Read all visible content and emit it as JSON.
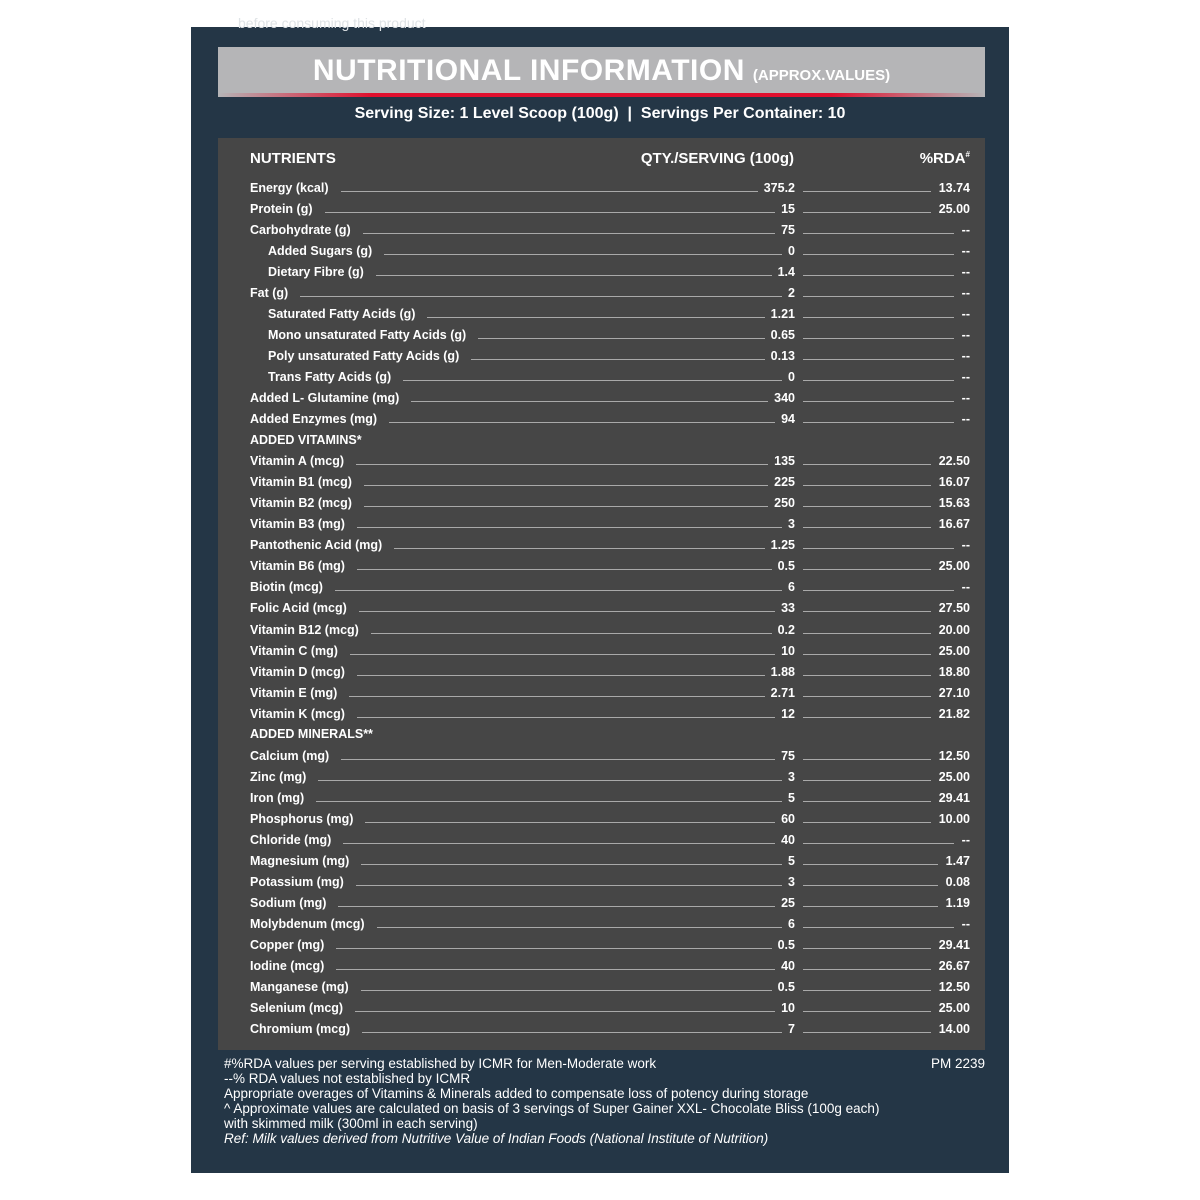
{
  "top_note": "before consuming this product",
  "header": {
    "title": "NUTRITIONAL INFORMATION",
    "subtitle": "(APPROX.VALUES)",
    "accent_color": "#e0102e"
  },
  "serving": "Serving Size: 1 Level Scoop (100g)  |  Servings Per Container: 10",
  "columns": {
    "nutrients": "NUTRIENTS",
    "qty": "QTY./SERVING (100g)",
    "rda": "%RDA",
    "rda_mark": "#"
  },
  "groups": [
    {
      "title": "",
      "rows": [
        {
          "name": "Energy (kcal)",
          "qty": "375.2",
          "rda": "13.74",
          "indent": false
        },
        {
          "name": "Protein (g)",
          "qty": "15",
          "rda": "25.00",
          "indent": false
        },
        {
          "name": "Carbohydrate (g)",
          "qty": "75",
          "rda": "--",
          "indent": false
        },
        {
          "name": "Added Sugars (g)",
          "qty": "0",
          "rda": "--",
          "indent": true
        },
        {
          "name": "Dietary Fibre (g)",
          "qty": "1.4",
          "rda": "--",
          "indent": true
        },
        {
          "name": "Fat (g)",
          "qty": "2",
          "rda": "--",
          "indent": false
        },
        {
          "name": "Saturated Fatty Acids (g)",
          "qty": "1.21",
          "rda": "--",
          "indent": true
        },
        {
          "name": "Mono unsaturated Fatty Acids (g)",
          "qty": "0.65",
          "rda": "--",
          "indent": true
        },
        {
          "name": "Poly unsaturated Fatty Acids (g)",
          "qty": "0.13",
          "rda": "--",
          "indent": true
        },
        {
          "name": "Trans Fatty Acids (g)",
          "qty": "0",
          "rda": "--",
          "indent": true
        },
        {
          "name": "Added L- Glutamine (mg)",
          "qty": "340",
          "rda": "--",
          "indent": false
        },
        {
          "name": "Added Enzymes (mg)",
          "qty": "94",
          "rda": "--",
          "indent": false
        }
      ]
    },
    {
      "title": "ADDED VITAMINS*",
      "rows": [
        {
          "name": "Vitamin A (mcg)",
          "qty": "135",
          "rda": "22.50"
        },
        {
          "name": "Vitamin B1 (mcg)",
          "qty": "225",
          "rda": "16.07"
        },
        {
          "name": "Vitamin B2 (mcg)",
          "qty": "250",
          "rda": "15.63"
        },
        {
          "name": "Vitamin B3 (mg)",
          "qty": "3",
          "rda": "16.67"
        },
        {
          "name": "Pantothenic Acid (mg)",
          "qty": "1.25",
          "rda": "--"
        },
        {
          "name": "Vitamin B6 (mg)",
          "qty": "0.5",
          "rda": "25.00"
        },
        {
          "name": "Biotin (mcg)",
          "qty": "6",
          "rda": "--"
        },
        {
          "name": "Folic Acid (mcg)",
          "qty": "33",
          "rda": "27.50"
        },
        {
          "name": "Vitamin B12 (mcg)",
          "qty": "0.2",
          "rda": "20.00"
        },
        {
          "name": "Vitamin C (mg)",
          "qty": "10",
          "rda": "25.00"
        },
        {
          "name": "Vitamin D (mcg)",
          "qty": "1.88",
          "rda": "18.80"
        },
        {
          "name": "Vitamin E (mg)",
          "qty": "2.71",
          "rda": "27.10"
        },
        {
          "name": "Vitamin K (mcg)",
          "qty": "12",
          "rda": "21.82"
        }
      ]
    },
    {
      "title": "ADDED MINERALS**",
      "rows": [
        {
          "name": "Calcium (mg)",
          "qty": "75",
          "rda": "12.50"
        },
        {
          "name": "Zinc (mg)",
          "qty": "3",
          "rda": "25.00"
        },
        {
          "name": "Iron (mg)",
          "qty": "5",
          "rda": "29.41"
        },
        {
          "name": "Phosphorus (mg)",
          "qty": "60",
          "rda": "10.00"
        },
        {
          "name": "Chloride (mg)",
          "qty": "40",
          "rda": "--"
        },
        {
          "name": "Magnesium (mg)",
          "qty": "5",
          "rda": "1.47"
        },
        {
          "name": "Potassium (mg)",
          "qty": "3",
          "rda": "0.08"
        },
        {
          "name": "Sodium (mg)",
          "qty": "25",
          "rda": "1.19"
        },
        {
          "name": "Molybdenum (mcg)",
          "qty": "6",
          "rda": "--"
        },
        {
          "name": "Copper (mg)",
          "qty": "0.5",
          "rda": "29.41"
        },
        {
          "name": "Iodine (mcg)",
          "qty": "40",
          "rda": "26.67"
        },
        {
          "name": "Manganese (mg)",
          "qty": "0.5",
          "rda": "12.50"
        },
        {
          "name": "Selenium (mcg)",
          "qty": "10",
          "rda": "25.00"
        },
        {
          "name": "Chromium (mcg)",
          "qty": "7",
          "rda": "14.00"
        }
      ]
    }
  ],
  "footnotes": {
    "l1": "#%RDA values per serving established by ICMR for Men-Moderate work",
    "l2": "--% RDA values not established by ICMR",
    "l3": "Appropriate overages of Vitamins & Minerals added to compensate loss of potency during storage",
    "l4": "^ Approximate values are calculated on basis of 3 servings of Super Gainer XXL- Chocolate Bliss (100g each)",
    "l5": "with skimmed milk (300ml in each serving)",
    "l6": "Ref: Milk values derived from Nutritive Value of Indian Foods (National Institute of Nutrition)"
  },
  "code": "PM 2239"
}
